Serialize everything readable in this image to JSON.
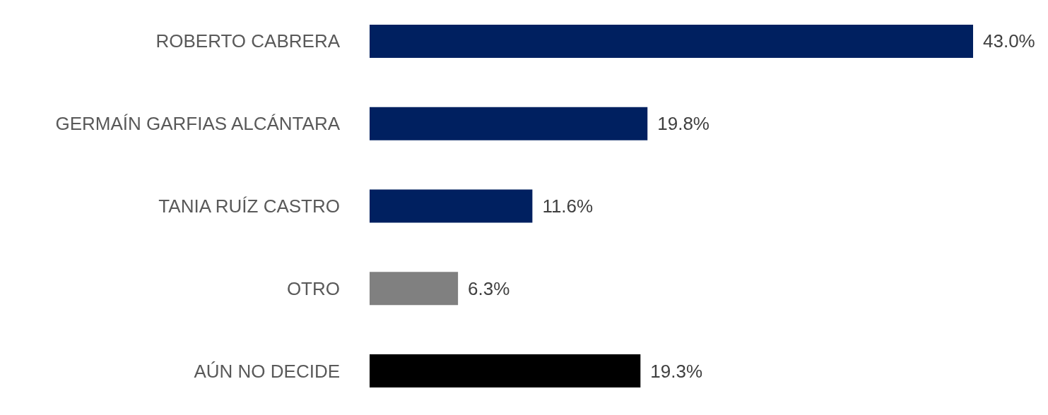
{
  "chart_data": {
    "type": "bar",
    "orientation": "horizontal",
    "categories": [
      "ROBERTO CABRERA",
      "GERMAÍN GARFIAS ALCÁNTARA",
      "TANIA RUÍZ CASTRO",
      "OTRO",
      "AÚN NO DECIDE"
    ],
    "values": [
      43.0,
      19.8,
      11.6,
      6.3,
      19.3
    ],
    "value_labels": [
      "43.0%",
      "19.8%",
      "11.6%",
      "6.3%",
      "19.3%"
    ],
    "colors": [
      "#002060",
      "#002060",
      "#002060",
      "#808080",
      "#000000"
    ],
    "tick_labels": "y"
  }
}
